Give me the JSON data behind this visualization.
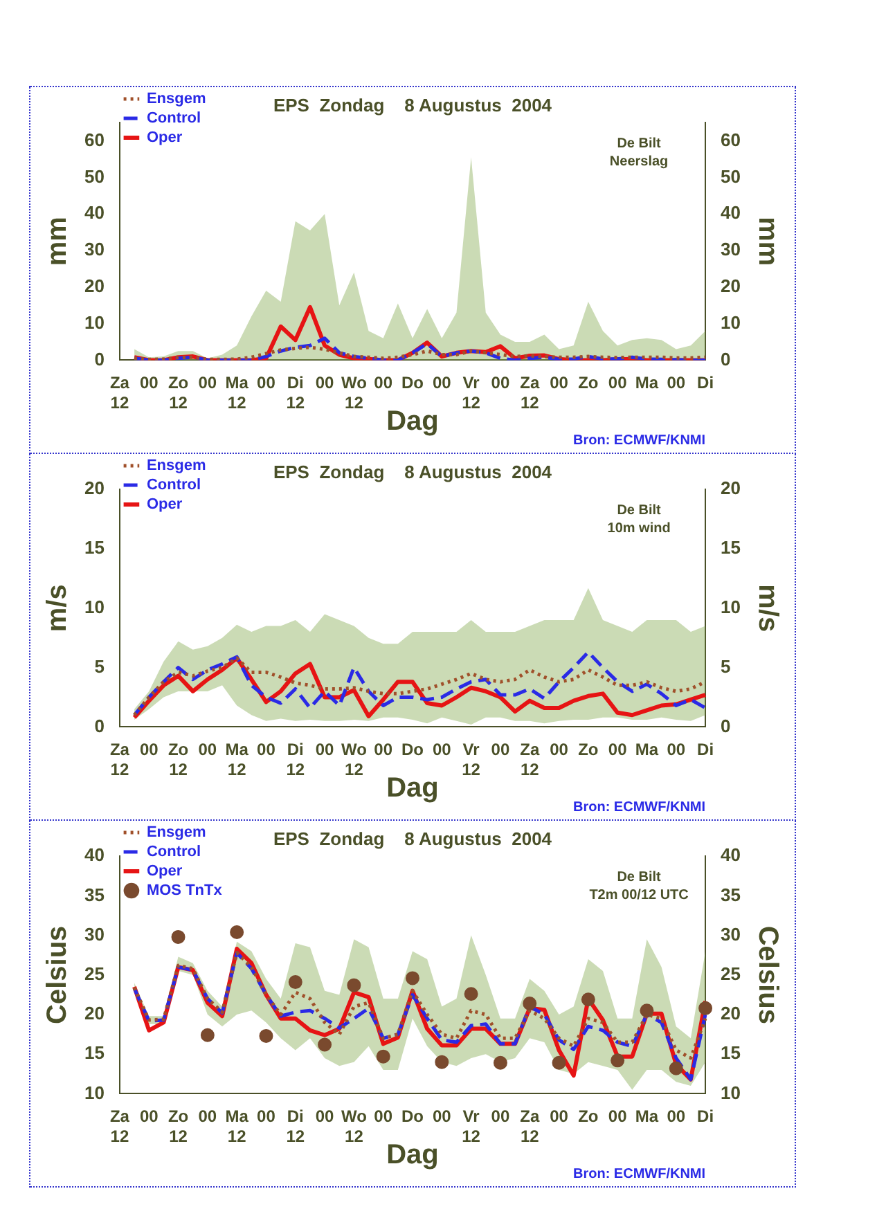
{
  "chart_data": [
    {
      "type": "line",
      "title": "EPS  Zondag    8 Augustus  2004",
      "xlabel": "Dag",
      "ylabel": "mm",
      "y2label": "mm",
      "legend": "top left",
      "categories": [
        "Za\n12",
        null,
        "00",
        null,
        "Zo\n12",
        null,
        "00",
        null,
        "Ma\n12",
        null,
        "00",
        null,
        "Di\n12",
        null,
        "00",
        null,
        "Wo\n12",
        null,
        "00",
        null,
        "Do",
        null,
        "00",
        null,
        "Vr\n12",
        null,
        "00",
        null,
        "Za\n12",
        null,
        "00",
        null,
        "Zo",
        null,
        "00",
        null,
        "Ma",
        null,
        "00",
        null,
        "Di"
      ],
      "ylim": [
        0,
        65
      ],
      "yticks": [
        0,
        10,
        20,
        30,
        40,
        50,
        60
      ],
      "y2lim": [
        0,
        65
      ],
      "y2ticks": [
        0,
        10,
        20,
        30,
        40,
        50,
        60
      ],
      "annotations": [
        "De Bilt\nNeerslag",
        "Bron: ECMWF/KNMI"
      ],
      "series": [
        {
          "name": "Ensgem",
          "color": "#a0502a",
          "line_style": "dotted",
          "values": [
            null,
            0.5,
            0.2,
            0.3,
            0.7,
            0.8,
            0.2,
            0.2,
            0.3,
            0.8,
            1.8,
            2.8,
            3.2,
            3.5,
            3,
            2,
            1,
            0.8,
            0.5,
            0.8,
            1.5,
            2.5,
            1.5,
            1.5,
            2.5,
            2,
            1.5,
            1,
            1.2,
            1,
            0.8,
            0.8,
            1,
            0.8,
            0.7,
            0.8,
            0.8,
            0.8,
            0.6,
            0.6,
            0.8
          ],
          "lower": [
            null,
            0,
            0,
            0,
            0,
            0,
            0,
            0,
            0,
            0,
            0,
            0,
            0,
            0,
            0,
            0,
            0,
            0,
            0,
            0,
            0,
            0,
            0,
            0,
            0,
            0,
            0,
            0,
            0,
            0,
            0,
            0,
            0,
            0,
            0,
            0,
            0,
            0,
            0,
            0,
            0
          ],
          "upper": [
            null,
            3,
            0.8,
            1,
            2.5,
            2.5,
            0.5,
            1.5,
            4,
            12,
            19,
            16,
            38,
            35.5,
            40,
            15,
            24,
            8,
            6,
            15.5,
            6,
            14,
            6,
            13,
            55.5,
            13,
            7,
            5,
            5,
            7,
            3,
            4,
            16,
            8,
            4,
            5.5,
            6,
            5.5,
            3,
            4,
            8
          ]
        },
        {
          "name": "Control",
          "color": "#2a2ae6",
          "line_style": "dashed",
          "values": [
            null,
            0.5,
            0,
            0,
            0.5,
            0.8,
            0,
            0,
            0,
            0,
            1,
            2.5,
            3.5,
            4,
            6,
            2,
            1,
            0.5,
            0,
            0,
            2,
            4.5,
            1,
            2,
            2.5,
            2,
            0.5,
            0,
            0.5,
            0.8,
            0.2,
            0.3,
            1,
            0.3,
            0.3,
            0.8,
            0.3,
            0.2,
            0.1,
            0,
            0
          ]
        },
        {
          "name": "Oper",
          "color": "#e61414",
          "line_style": "solid",
          "values": [
            null,
            0.8,
            0,
            0,
            0.8,
            1,
            0,
            0,
            0,
            0,
            0.5,
            9.2,
            5.5,
            14.5,
            4,
            1.5,
            0.5,
            0.3,
            0,
            0,
            2,
            4.8,
            1,
            2,
            2.5,
            2.2,
            3.8,
            0.5,
            1.2,
            1.3,
            0.3,
            0,
            0,
            0,
            0.2,
            0.3,
            0,
            0,
            0,
            0,
            0
          ]
        }
      ]
    },
    {
      "type": "line",
      "title": "EPS  Zondag    8 Augustus  2004",
      "xlabel": "Dag",
      "ylabel": "m/s",
      "y2label": "m/s",
      "legend": "top left",
      "categories": [
        "Za\n12",
        null,
        "00",
        null,
        "Zo\n12",
        null,
        "00",
        null,
        "Ma\n12",
        null,
        "00",
        null,
        "Di\n12",
        null,
        "00",
        null,
        "Wo\n12",
        null,
        "00",
        null,
        "Do",
        null,
        "00",
        null,
        "Vr\n12",
        null,
        "00",
        null,
        "Za\n12",
        null,
        "00",
        null,
        "Zo",
        null,
        "00",
        null,
        "Ma",
        null,
        "00",
        null,
        "Di"
      ],
      "ylim": [
        0,
        20
      ],
      "yticks": [
        0,
        5,
        10,
        15,
        20
      ],
      "y2lim": [
        0,
        20
      ],
      "y2ticks": [
        0,
        5,
        10,
        15,
        20
      ],
      "annotations": [
        "De Bilt\n10m wind",
        "Bron: ECMWF/KNMI"
      ],
      "series": [
        {
          "name": "Ensgem",
          "color": "#a0502a",
          "line_style": "dotted",
          "values": [
            null,
            1,
            2.5,
            3.8,
            4.6,
            4.3,
            4.7,
            5,
            5.8,
            4.6,
            4.6,
            4.2,
            3.7,
            3.5,
            3.2,
            3.2,
            3.3,
            3,
            2.8,
            2.8,
            3,
            3.2,
            3.6,
            4,
            4.5,
            4,
            3.8,
            4,
            4.8,
            4.2,
            3.8,
            4,
            4.8,
            4.2,
            3.5,
            3.5,
            3.8,
            3.3,
            3,
            3.2,
            3.8
          ],
          "lower": [
            null,
            0.6,
            1.5,
            2.5,
            3,
            3,
            3,
            3.5,
            1.8,
            1,
            0.5,
            0.7,
            0.5,
            0.6,
            0.5,
            0.5,
            0.6,
            0.5,
            0.8,
            0.8,
            0.6,
            0.3,
            0.8,
            0.5,
            0.2,
            0.8,
            0.8,
            0.5,
            0.5,
            0.3,
            0.5,
            0.6,
            0.6,
            0.8,
            0.8,
            0.6,
            0.6,
            0.8,
            0.6,
            0.5,
            1
          ],
          "upper": [
            null,
            1.5,
            3,
            5.5,
            7.2,
            6.5,
            6.8,
            7.5,
            8.6,
            8,
            8.5,
            8.5,
            9,
            8,
            9.5,
            9,
            8.5,
            7.5,
            7,
            7,
            8,
            8,
            8,
            8,
            9,
            8,
            8,
            8,
            8.5,
            9,
            9,
            9,
            11.7,
            9,
            8.5,
            8,
            9,
            9,
            9,
            8,
            8.5
          ]
        },
        {
          "name": "Control",
          "color": "#2a2ae6",
          "line_style": "dashed",
          "values": [
            null,
            1,
            2.5,
            3.8,
            5,
            4,
            4.8,
            5.3,
            5.9,
            3.5,
            2.5,
            2,
            3.2,
            1.6,
            3,
            1.8,
            5,
            3,
            1.8,
            2.5,
            2.5,
            2.3,
            2.5,
            3.2,
            3.8,
            4,
            2.7,
            2.7,
            3.2,
            2.4,
            3.8,
            5,
            6.3,
            5,
            3.8,
            3,
            3.6,
            2.8,
            1.8,
            2.3,
            1.6
          ]
        },
        {
          "name": "Oper",
          "color": "#e61414",
          "line_style": "solid",
          "values": [
            null,
            0.8,
            2.2,
            3.5,
            4.3,
            3,
            4,
            4.8,
            5.8,
            4,
            2.1,
            3,
            4.5,
            5.3,
            2.5,
            2.5,
            3.1,
            0.9,
            2.3,
            3.8,
            3.8,
            2,
            1.8,
            2.5,
            3.3,
            3,
            2.5,
            1.3,
            2.2,
            1.6,
            1.6,
            2.2,
            2.6,
            2.8,
            1.2,
            1,
            1.4,
            1.8,
            1.9,
            2.3,
            2.7
          ]
        }
      ]
    },
    {
      "type": "line",
      "title": "EPS  Zondag    8 Augustus  2004",
      "xlabel": "Dag",
      "ylabel": "Celsius",
      "y2label": "Celsius",
      "legend": "top left",
      "categories": [
        "Za\n12",
        null,
        "00",
        null,
        "Zo\n12",
        null,
        "00",
        null,
        "Ma\n12",
        null,
        "00",
        null,
        "Di\n12",
        null,
        "00",
        null,
        "Wo\n12",
        null,
        "00",
        null,
        "Do",
        null,
        "00",
        null,
        "Vr\n12",
        null,
        "00",
        null,
        "Za\n12",
        null,
        "00",
        null,
        "Zo",
        null,
        "00",
        null,
        "Ma",
        null,
        "00",
        null,
        "Di"
      ],
      "ylim": [
        10,
        40
      ],
      "yticks": [
        10,
        15,
        20,
        25,
        30,
        35,
        40
      ],
      "y2lim": [
        10,
        40
      ],
      "y2ticks": [
        10,
        15,
        20,
        25,
        30,
        35,
        40
      ],
      "annotations": [
        "De Bilt\nT2m 00/12 UTC",
        "Bron: ECMWF/KNMI"
      ],
      "series": [
        {
          "name": "Ensgem",
          "color": "#a0502a",
          "line_style": "dotted",
          "values": [
            null,
            23.4,
            19.3,
            19.4,
            26.2,
            25.8,
            22,
            20.3,
            27.8,
            26,
            22.5,
            20,
            22.8,
            22,
            19,
            17.5,
            21,
            21.5,
            17,
            17.5,
            23,
            20,
            17.5,
            17,
            20.5,
            20,
            17,
            17,
            20.5,
            19.5,
            17,
            16,
            19.5,
            19,
            16.5,
            16.5,
            20,
            19.5,
            15.5,
            14.5,
            19.5
          ],
          "lower": [
            null,
            23,
            18.8,
            18.8,
            25.5,
            25,
            20,
            18.5,
            20,
            20.5,
            19,
            17,
            15.5,
            17,
            14.5,
            13.5,
            14,
            16,
            13,
            13,
            19.5,
            16,
            14,
            13.5,
            14.5,
            15,
            14,
            14.5,
            17,
            16.5,
            13,
            12.5,
            14,
            13.5,
            13,
            10.5,
            13,
            13,
            11.5,
            11,
            14
          ],
          "upper": [
            null,
            24,
            19.8,
            19.8,
            27.3,
            26.5,
            23,
            21,
            29.2,
            28,
            24.5,
            22,
            29,
            28.5,
            23,
            22.5,
            29.5,
            28.5,
            22,
            22,
            28,
            27,
            21,
            22,
            30,
            25,
            19.5,
            19.5,
            24.5,
            23,
            20,
            21,
            27,
            25.5,
            19.5,
            19.5,
            29.5,
            26,
            18.5,
            17,
            28
          ]
        },
        {
          "name": "Control",
          "color": "#2a2ae6",
          "line_style": "dashed",
          "values": [
            null,
            23.3,
            19.2,
            19.3,
            26,
            25.6,
            22,
            20.2,
            27.8,
            25.8,
            22.5,
            19.8,
            20.3,
            20.5,
            19.5,
            18.3,
            19.5,
            20.8,
            17,
            17.5,
            22.5,
            19.5,
            16.8,
            16.5,
            18.6,
            18.8,
            16.3,
            16.3,
            21,
            20,
            16.8,
            15.6,
            18.5,
            18,
            16.5,
            16,
            20,
            19,
            14.5,
            11.8,
            20
          ]
        },
        {
          "name": "Oper",
          "color": "#e61414",
          "line_style": "solid",
          "values": [
            null,
            23.5,
            18,
            19,
            26,
            25.6,
            21.5,
            19.8,
            28.3,
            26.5,
            22.5,
            19.5,
            19.5,
            18,
            17.4,
            18.2,
            22.8,
            22.2,
            16.3,
            17.1,
            23,
            18.2,
            16.1,
            16.1,
            18.2,
            18.2,
            16.3,
            16.3,
            20.8,
            20.6,
            15.5,
            12.3,
            22,
            19.3,
            14.7,
            14.7,
            20.1,
            20.1,
            13.7,
            11.8,
            21.7
          ]
        },
        {
          "name": "MOS TnTx",
          "type": "scatter",
          "color": "#7a4a2e",
          "marker": "circle",
          "values": [
            null,
            null,
            null,
            null,
            29.8,
            null,
            17.4,
            null,
            30.4,
            null,
            17.3,
            null,
            24.1,
            null,
            16.2,
            null,
            23.7,
            null,
            14.7,
            null,
            24.6,
            null,
            14,
            null,
            22.6,
            null,
            13.9,
            null,
            21.4,
            null,
            13.9,
            null,
            21.9,
            null,
            14.2,
            null,
            20.5,
            null,
            13.2,
            null,
            20.8
          ]
        }
      ]
    }
  ]
}
